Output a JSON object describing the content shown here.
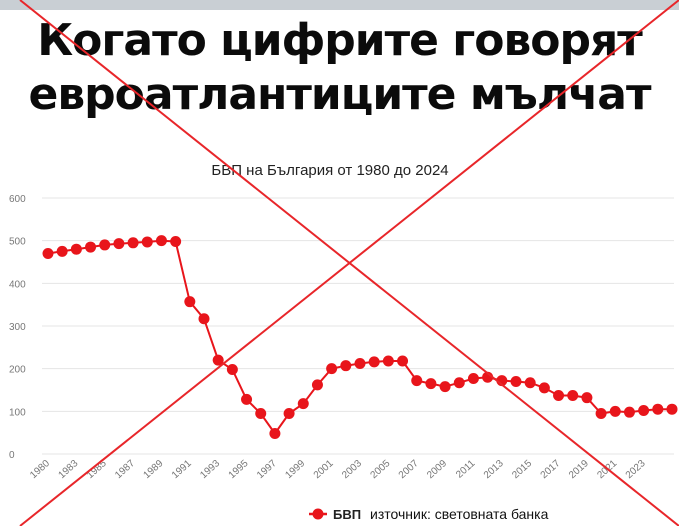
{
  "headline": {
    "line1": "Когато цифрите говорят",
    "line2": "евроатлантиците мълчат"
  },
  "colors": {
    "series": "#e8151b",
    "cross": "#e8262a",
    "text": "#111111",
    "grid": "#e4e4e4",
    "axis_text": "#777777"
  },
  "chart_data": {
    "type": "line",
    "title": "БВП на България от 1980 до 2024",
    "x": [
      1980,
      1981,
      1982,
      1983,
      1984,
      1985,
      1986,
      1987,
      1988,
      1989,
      1990,
      1991,
      1992,
      1993,
      1994,
      1995,
      1996,
      1997,
      1998,
      1999,
      2000,
      2001,
      2002,
      2003,
      2004,
      2005,
      2006,
      2007,
      2008,
      2009,
      2010,
      2011,
      2012,
      2013,
      2014,
      2015,
      2016,
      2017,
      2018,
      2019,
      2020,
      2021,
      2022,
      2023,
      2024
    ],
    "x_tick_labels": [
      "1980",
      "1983",
      "1985",
      "1987",
      "1989",
      "1991",
      "1993",
      "1995",
      "1997",
      "1999",
      "2001",
      "2003",
      "2005",
      "2007",
      "2009",
      "2011",
      "2013",
      "2015",
      "2017",
      "2019",
      "2021",
      "2023"
    ],
    "series": [
      {
        "name": "БВП",
        "values": [
          470,
          475,
          480,
          485,
          490,
          493,
          495,
          497,
          500,
          498,
          357,
          317,
          220,
          198,
          128,
          95,
          48,
          95,
          118,
          162,
          200,
          207,
          212,
          216,
          218,
          218,
          172,
          165,
          158,
          167,
          177,
          180,
          172,
          170,
          167,
          155,
          137,
          137,
          132,
          95,
          100,
          98,
          102,
          105,
          105
        ]
      }
    ],
    "ylim": [
      0,
      600
    ],
    "y_ticks": [
      0,
      100,
      200,
      300,
      400,
      500,
      600
    ],
    "grid": true,
    "legend": {
      "position": "bottom",
      "label": "БВП",
      "source": "източник: световната банка"
    },
    "xlabel": "",
    "ylabel": ""
  }
}
